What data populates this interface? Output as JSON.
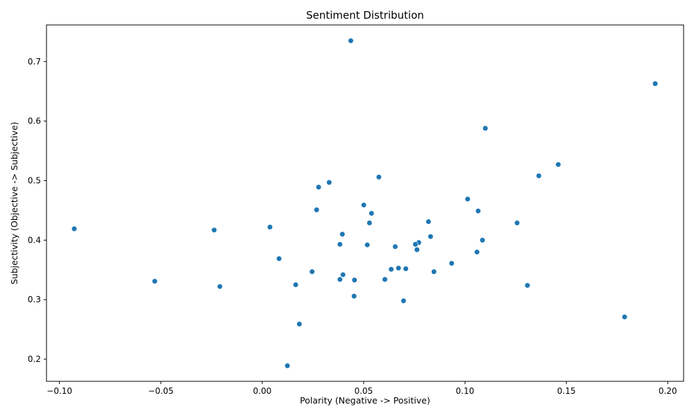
{
  "chart_data": {
    "type": "scatter",
    "title": "Sentiment Distribution",
    "xlabel": "Polarity (Negative -> Positive)",
    "ylabel": "Subjectivity (Objective -> Subjective)",
    "xlim": [
      -0.1064,
      0.2078
    ],
    "ylim": [
      0.1628,
      0.7615
    ],
    "xticks": [
      -0.1,
      -0.05,
      0.0,
      0.05,
      0.1,
      0.15,
      0.2
    ],
    "xtick_labels": [
      "−0.10",
      "−0.05",
      "0.00",
      "0.05",
      "0.10",
      "0.15",
      "0.20"
    ],
    "yticks": [
      0.2,
      0.3,
      0.4,
      0.5,
      0.6,
      0.7
    ],
    "ytick_labels": [
      "0.2",
      "0.3",
      "0.4",
      "0.5",
      "0.6",
      "0.7"
    ],
    "grid": false,
    "marker_color": "#1f77b4",
    "points": [
      {
        "x": 0.0437,
        "y": 0.735
      },
      {
        "x": 0.1938,
        "y": 0.663
      },
      {
        "x": 0.11,
        "y": 0.588
      },
      {
        "x": 0.146,
        "y": 0.527
      },
      {
        "x": 0.1364,
        "y": 0.508
      },
      {
        "x": 0.0575,
        "y": 0.506
      },
      {
        "x": 0.033,
        "y": 0.497
      },
      {
        "x": 0.0278,
        "y": 0.489
      },
      {
        "x": 0.1013,
        "y": 0.469
      },
      {
        "x": 0.0501,
        "y": 0.459
      },
      {
        "x": 0.0268,
        "y": 0.451
      },
      {
        "x": 0.1065,
        "y": 0.449
      },
      {
        "x": 0.0539,
        "y": 0.445
      },
      {
        "x": 0.082,
        "y": 0.431
      },
      {
        "x": 0.0529,
        "y": 0.429
      },
      {
        "x": 0.1257,
        "y": 0.429
      },
      {
        "x": 0.0038,
        "y": 0.422
      },
      {
        "x": -0.0927,
        "y": 0.419
      },
      {
        "x": -0.0237,
        "y": 0.417
      },
      {
        "x": 0.0395,
        "y": 0.41
      },
      {
        "x": 0.083,
        "y": 0.406
      },
      {
        "x": 0.1086,
        "y": 0.4
      },
      {
        "x": 0.0772,
        "y": 0.396
      },
      {
        "x": 0.0383,
        "y": 0.393
      },
      {
        "x": 0.0518,
        "y": 0.392
      },
      {
        "x": 0.0755,
        "y": 0.393
      },
      {
        "x": 0.0656,
        "y": 0.389
      },
      {
        "x": 0.0763,
        "y": 0.384
      },
      {
        "x": 0.1059,
        "y": 0.38
      },
      {
        "x": 0.0083,
        "y": 0.369
      },
      {
        "x": 0.0934,
        "y": 0.361
      },
      {
        "x": 0.0672,
        "y": 0.353
      },
      {
        "x": 0.0636,
        "y": 0.351
      },
      {
        "x": 0.0708,
        "y": 0.352
      },
      {
        "x": 0.0246,
        "y": 0.347
      },
      {
        "x": 0.0847,
        "y": 0.347
      },
      {
        "x": 0.0398,
        "y": 0.342
      },
      {
        "x": 0.0383,
        "y": 0.334
      },
      {
        "x": 0.0455,
        "y": 0.333
      },
      {
        "x": 0.0605,
        "y": 0.334
      },
      {
        "x": -0.053,
        "y": 0.331
      },
      {
        "x": 0.0165,
        "y": 0.325
      },
      {
        "x": 0.1308,
        "y": 0.324
      },
      {
        "x": -0.0209,
        "y": 0.322
      },
      {
        "x": 0.0453,
        "y": 0.306
      },
      {
        "x": 0.0697,
        "y": 0.298
      },
      {
        "x": 0.1787,
        "y": 0.271
      },
      {
        "x": 0.0183,
        "y": 0.259
      },
      {
        "x": 0.0124,
        "y": 0.189
      }
    ]
  }
}
